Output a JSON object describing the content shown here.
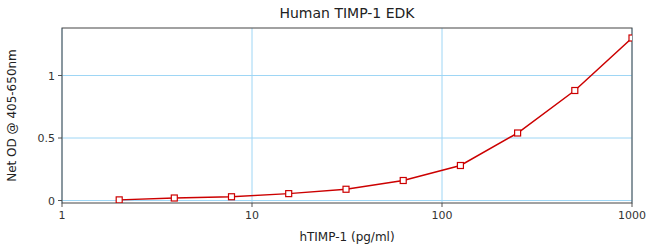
{
  "chart_data": {
    "type": "line",
    "title": "Human TIMP-1 EDK",
    "x_label": "hTIMP-1 (pg/ml)",
    "y_label": "Net OD @ 405-650nm",
    "x": [
      2.0,
      3.9,
      7.8,
      15.6,
      31.25,
      62.5,
      125,
      250,
      500,
      1000
    ],
    "values": [
      0.005,
      0.02,
      0.03,
      0.055,
      0.09,
      0.16,
      0.28,
      0.54,
      0.88,
      1.3
    ],
    "color": "#cc0000",
    "marker": "square",
    "log": "x",
    "xlim": [
      1,
      1000
    ],
    "xticks": [
      1,
      10,
      100,
      1000
    ],
    "ylim": [
      -0.02,
      1.38
    ],
    "yticks": [
      0,
      0.5,
      1
    ],
    "grid": true
  }
}
